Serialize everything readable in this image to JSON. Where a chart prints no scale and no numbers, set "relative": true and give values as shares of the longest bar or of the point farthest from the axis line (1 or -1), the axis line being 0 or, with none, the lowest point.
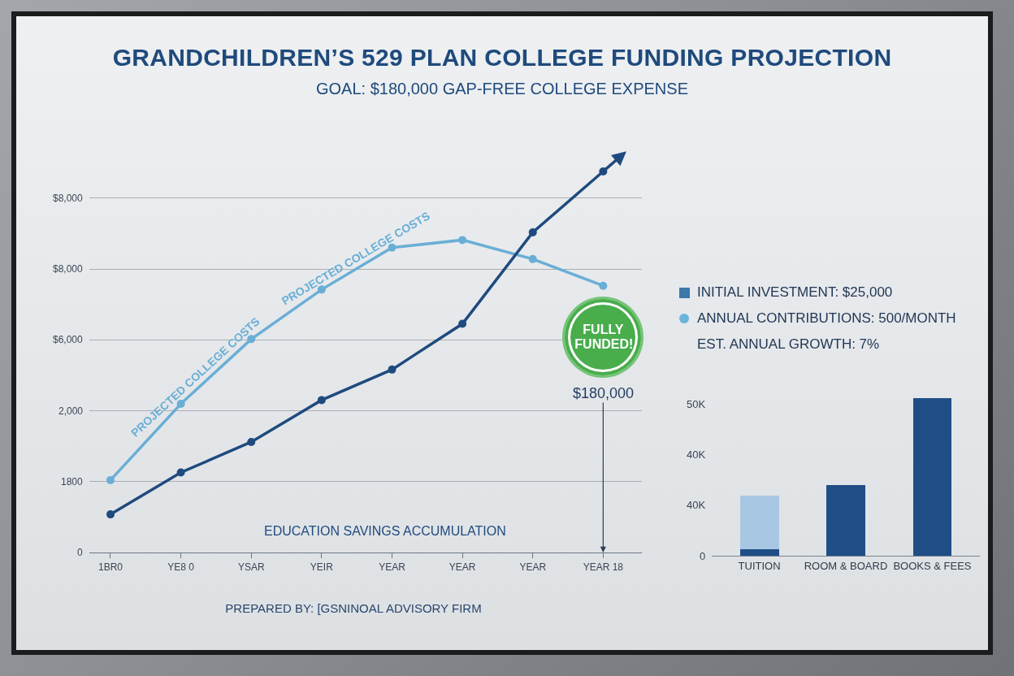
{
  "chart_data": [
    {
      "type": "line",
      "title": "GRANDCHILDREN’S 529 PLAN COLLEGE FUNDING PROJECTION",
      "subtitle": "GOAL: $180,000 GAP-FREE COLLEGE EXPENSE",
      "categories": [
        "1BR0",
        "YE8 0",
        "YSAR",
        "YEIR",
        "YEAR",
        "YEAR",
        "YEAR",
        "YEAR 18"
      ],
      "relative": true,
      "series": [
        {
          "name": "PROJECTED COLLEGE COSTS",
          "color": "#6aaed6",
          "values": [
            0.19,
            0.39,
            0.56,
            0.69,
            0.8,
            0.82,
            0.77,
            0.7
          ]
        },
        {
          "name": "EDUCATION SAVINGS ACCUMULATION",
          "color": "#1f4a7e",
          "values": [
            0.1,
            0.21,
            0.29,
            0.4,
            0.48,
            0.6,
            0.84,
            1
          ]
        }
      ],
      "grid": "y",
      "marker": "circle",
      "line_style": "solid",
      "annotations": [
        "$180,000",
        "FULLY FUNDED!",
        "PREPARED BY: [GSNINOAL ADVISORY FIRM",
        "0",
        "1800",
        "2,000",
        "$6,000",
        "$8,000",
        "$8,000"
      ]
    },
    {
      "type": "bar",
      "categories": [
        "TUITION",
        "ROOM & BOARD",
        "BOOKS & FEES"
      ],
      "stacked": true,
      "relative": true,
      "series": [
        {
          "color": "#1f4e87",
          "values": [
            0.04,
            0.45,
            1
          ]
        },
        {
          "color": "#a8c7e2",
          "values": [
            0.34,
            null,
            null
          ]
        }
      ],
      "annotations": [
        "INITIAL INVESTMENT: $25,000",
        "ANNUAL CONTRIBUTIONS: 500/MONTH",
        "EST. ANNUAL GROWTH: 7%",
        "0",
        "40K",
        "40K",
        "50K"
      ]
    }
  ]
}
